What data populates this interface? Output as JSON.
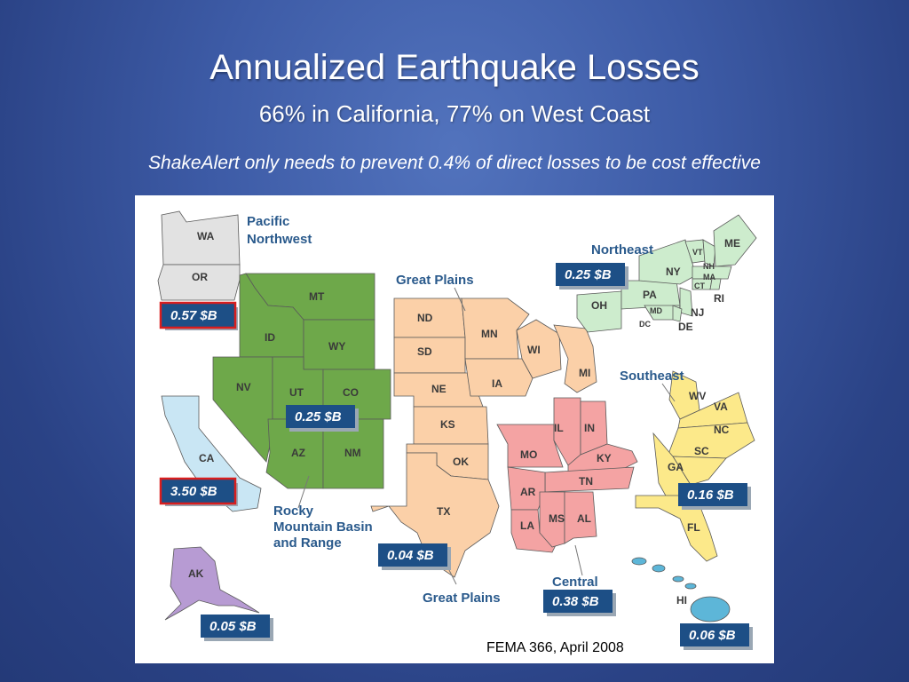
{
  "title": "Annualized Earthquake Losses",
  "subtitle": "66% in California, 77% on West Coast",
  "tagline": "ShakeAlert only needs to prevent 0.4% of direct losses to be cost effective",
  "source": "FEMA 366, April 2008",
  "colors": {
    "pacific_northwest": "#e2e2e2",
    "california": "#c9e6f4",
    "rocky_mountain": "#6ea84a",
    "great_plains": "#fbd0a8",
    "central": "#f4a3a3",
    "northeast": "#cdeccd",
    "southeast": "#fce98a",
    "alaska": "#b79bd3",
    "hawaii": "#5db6d8",
    "loss_box": "#1d4f86",
    "highlight": "#d81e1e"
  },
  "regions": {
    "pacific_northwest": {
      "label_line1": "Pacific",
      "label_line2": "Northwest",
      "loss": "0.57 $B",
      "highlighted": true
    },
    "california": {
      "loss": "3.50 $B",
      "highlighted": true
    },
    "rocky_mountain": {
      "label_line1": "Rocky",
      "label_line2": "Mountain Basin",
      "label_line3": "and Range",
      "loss": "0.25 $B"
    },
    "great_plains_north": {
      "label": "Great Plains"
    },
    "great_plains_south": {
      "label": "Great Plains",
      "loss": "0.04 $B"
    },
    "northeast": {
      "label": "Northeast",
      "loss": "0.25 $B"
    },
    "southeast": {
      "label": "Southeast",
      "loss": "0.16 $B"
    },
    "central": {
      "label": "Central",
      "loss": "0.38 $B"
    },
    "alaska": {
      "loss": "0.05 $B"
    },
    "hawaii": {
      "loss": "0.06 $B"
    }
  },
  "states": {
    "WA": "WA",
    "OR": "OR",
    "CA": "CA",
    "NV": "NV",
    "ID": "ID",
    "MT": "MT",
    "WY": "WY",
    "UT": "UT",
    "CO": "CO",
    "AZ": "AZ",
    "NM": "NM",
    "ND": "ND",
    "SD": "SD",
    "NE": "NE",
    "KS": "KS",
    "OK": "OK",
    "TX": "TX",
    "MN": "MN",
    "IA": "IA",
    "WI": "WI",
    "MI": "MI",
    "MO": "MO",
    "AR": "AR",
    "LA": "LA",
    "IL": "IL",
    "IN": "IN",
    "KY": "KY",
    "TN": "TN",
    "MS": "MS",
    "AL": "AL",
    "OH": "OH",
    "PA": "PA",
    "NY": "NY",
    "VT": "VT",
    "NH": "NH",
    "ME": "ME",
    "MA": "MA",
    "CT": "CT",
    "RI": "RI",
    "NJ": "NJ",
    "DE": "DE",
    "MD": "MD",
    "DC": "DC",
    "WV": "WV",
    "VA": "VA",
    "NC": "NC",
    "SC": "SC",
    "GA": "GA",
    "FL": "FL",
    "AK": "AK",
    "HI": "HI"
  }
}
